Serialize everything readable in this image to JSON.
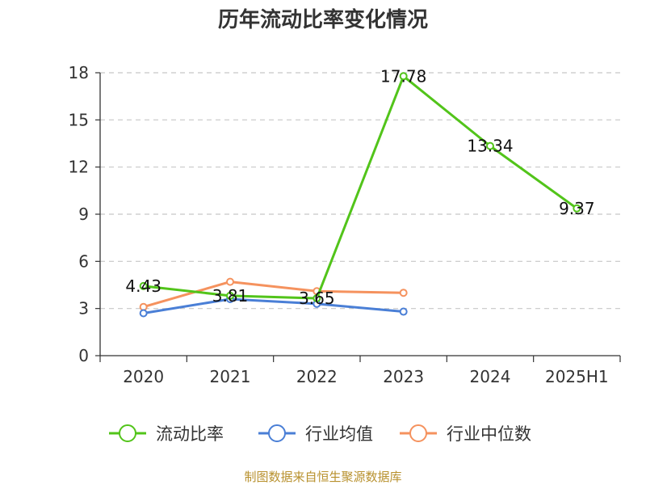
{
  "chart_data": {
    "type": "line",
    "title": "历年流动比率变化情况",
    "categories": [
      "2020",
      "2021",
      "2022",
      "2023",
      "2024",
      "2025H1"
    ],
    "ylim": [
      0,
      18
    ],
    "yticks": [
      "0",
      "3",
      "6",
      "9",
      "12",
      "15",
      "18"
    ],
    "grid": true,
    "legend_position": "bottom",
    "series": [
      {
        "name": "流动比率",
        "color": "#52c41a",
        "values": [
          4.43,
          3.81,
          3.65,
          17.78,
          13.34,
          9.37
        ],
        "labels": [
          "4.43",
          "3.81",
          "3.65",
          "17.78",
          "13.34",
          "9.37"
        ]
      },
      {
        "name": "行业均值",
        "color": "#4a7fd6",
        "values": [
          2.7,
          3.6,
          3.3,
          2.8,
          null,
          null
        ]
      },
      {
        "name": "行业中位数",
        "color": "#f5925e",
        "values": [
          3.1,
          4.7,
          4.1,
          4.0,
          null,
          null
        ]
      }
    ]
  },
  "footer": {
    "source": "制图数据来自恒生聚源数据库"
  }
}
